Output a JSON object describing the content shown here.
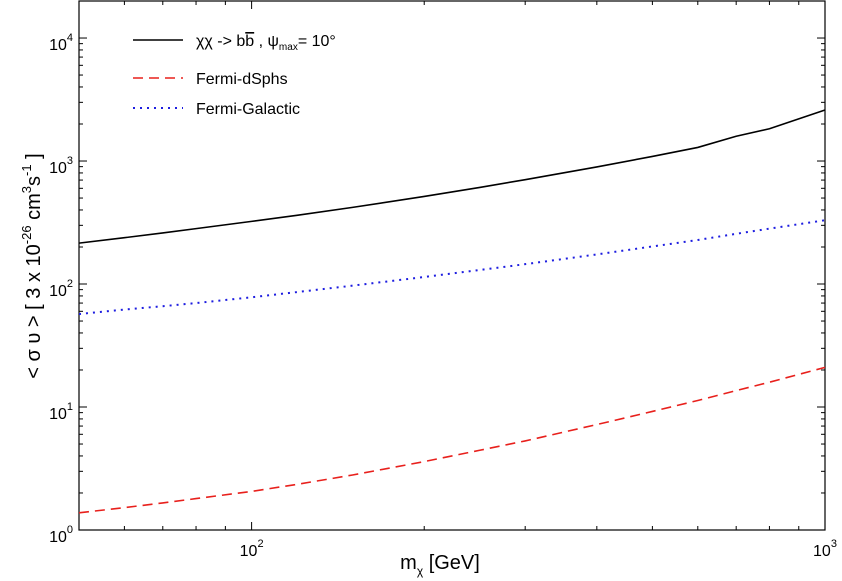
{
  "chart_data": {
    "type": "line",
    "x_scale": "log",
    "y_scale": "log",
    "xlim": [
      50,
      1000
    ],
    "ylim": [
      1,
      20000
    ],
    "x_ticks": [
      {
        "value": 100,
        "base": "10",
        "exp": "2"
      },
      {
        "value": 1000,
        "base": "10",
        "exp": "3"
      }
    ],
    "y_ticks": [
      {
        "value": 1,
        "base": "10",
        "exp": "0"
      },
      {
        "value": 10,
        "base": "10",
        "exp": "1"
      },
      {
        "value": 100,
        "base": "10",
        "exp": "2"
      },
      {
        "value": 1000,
        "base": "10",
        "exp": "3"
      },
      {
        "value": 10000,
        "base": "10",
        "exp": "4"
      }
    ],
    "xlabel": {
      "main": "m",
      "sub": "χ",
      "rest": " [GeV]"
    },
    "ylabel": {
      "pre": "< σ υ > [ 3 x 10",
      "exp1": "-26",
      "mid": " cm",
      "exp2": "3",
      "mid2": "s",
      "exp3": "-1",
      "post": " ]"
    },
    "legend_position": "top-left",
    "series": [
      {
        "name": "χχ -> bb , ψmax= 10°",
        "legend_main": "χχ -> b",
        "legend_bbar": "b",
        "legend_sep": " , ",
        "legend_psi": "ψ",
        "legend_psi_sub": "max",
        "legend_tail": "= 10°",
        "color": "#000000",
        "style": "solid",
        "x": [
          50,
          60,
          70,
          80,
          100,
          120,
          150,
          200,
          250,
          300,
          400,
          500,
          600,
          700,
          800,
          1000
        ],
        "y": [
          215,
          238,
          260,
          282,
          323,
          362,
          420,
          515,
          610,
          705,
          895,
          1090,
          1290,
          1590,
          1830,
          2600
        ]
      },
      {
        "name": "Fermi-dSphs",
        "color": "#e8201c",
        "style": "dashed",
        "x": [
          50,
          60,
          70,
          80,
          100,
          120,
          150,
          200,
          250,
          300,
          400,
          500,
          600,
          700,
          800,
          1000
        ],
        "y": [
          1.38,
          1.52,
          1.66,
          1.8,
          2.06,
          2.35,
          2.8,
          3.6,
          4.45,
          5.3,
          7.2,
          9.2,
          11.3,
          13.6,
          15.9,
          21.0
        ]
      },
      {
        "name": "Fermi-Galactic",
        "color": "#1d1de0",
        "style": "dotted",
        "x": [
          50,
          60,
          70,
          80,
          100,
          120,
          150,
          200,
          250,
          300,
          400,
          500,
          600,
          700,
          800,
          1000
        ],
        "y": [
          57,
          62,
          66,
          70,
          78,
          86,
          97,
          114,
          130,
          145,
          174,
          202,
          228,
          256,
          282,
          330
        ]
      }
    ]
  }
}
